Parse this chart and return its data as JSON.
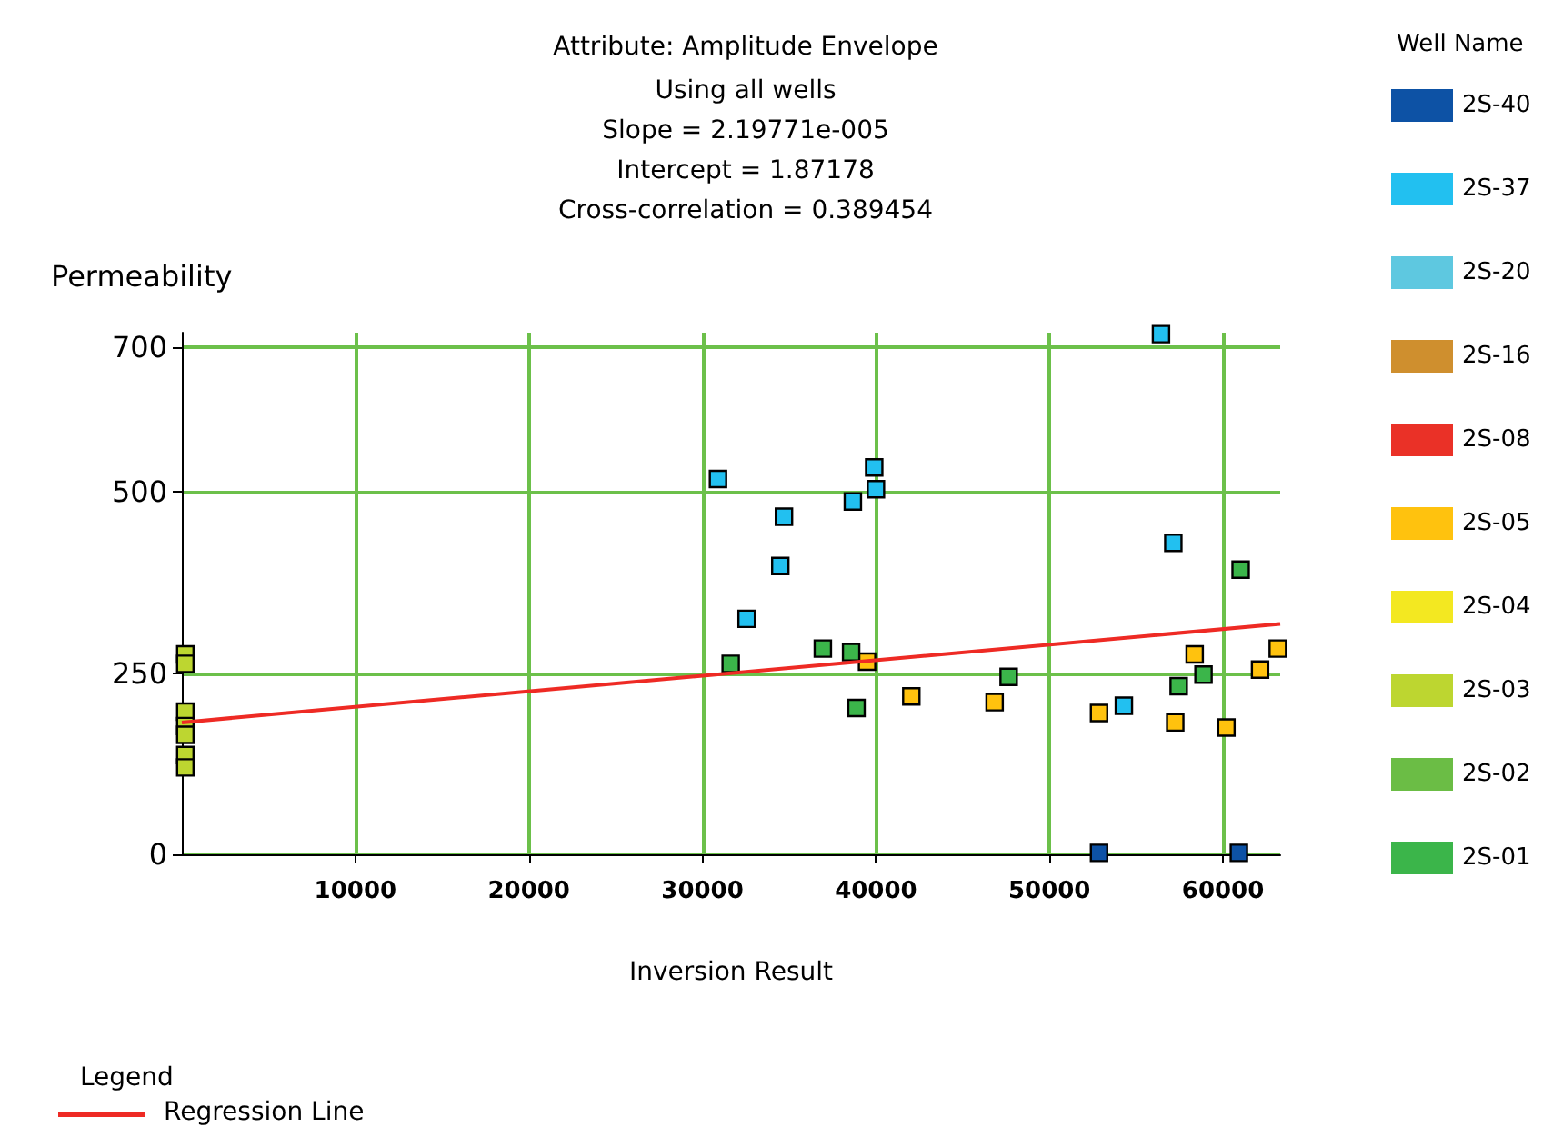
{
  "chart_data": {
    "type": "scatter",
    "title": "Attribute: Amplitude Envelope",
    "subtitle": "Using all wells",
    "annotations": [
      "Slope = 2.19771e-005",
      "Intercept = 1.87178",
      "Cross-correlation = 0.389454",
      "Legend"
    ],
    "xlabel": "Inversion Result",
    "ylabel": "Permeability",
    "legend_title": "Well Name",
    "legend": "right",
    "grid": true,
    "xlim": [
      0,
      63300
    ],
    "xticks": [
      10000,
      20000,
      30000,
      40000,
      50000,
      60000
    ],
    "ylim": [
      0,
      720
    ],
    "yticks": [
      0,
      250,
      500,
      700
    ],
    "series": [
      {
        "name": "2S-40",
        "color": "#0d52a5",
        "marker": "square",
        "x": [
          52860,
          60920
        ],
        "values": [
          2,
          2
        ]
      },
      {
        "name": "2S-37",
        "color": "#22c0f0",
        "marker": "square",
        "x": [
          30900,
          32550,
          34490,
          34700,
          38670,
          39900,
          40000,
          56430,
          57140,
          54290
        ],
        "values": [
          518,
          325,
          398,
          466,
          487,
          534,
          504,
          718,
          430,
          205
        ]
      },
      {
        "name": "2S-20",
        "color": "#5ec8e0"
      },
      {
        "name": "2S-16",
        "color": "#cf8f2e"
      },
      {
        "name": "2S-08",
        "color": "#ea3127"
      },
      {
        "name": "2S-05",
        "color": "#ffc20e",
        "marker": "square",
        "x": [
          39490,
          42040,
          46840,
          52860,
          57250,
          58370,
          60200,
          62140,
          63160
        ],
        "values": [
          266,
          218,
          210,
          195,
          182,
          276,
          175,
          255,
          284
        ]
      },
      {
        "name": "2S-04",
        "color": "#f3e821"
      },
      {
        "name": "2S-03",
        "color": "#bdd630",
        "marker": "square",
        "x": [
          200,
          200,
          200,
          200,
          200,
          200,
          200
        ],
        "values": [
          276,
          263,
          197,
          177,
          165,
          137,
          120
        ]
      },
      {
        "name": "2S-02",
        "color": "#6bbd45"
      },
      {
        "name": "2S-01",
        "color": "#3bb54a",
        "marker": "square",
        "x": [
          31630,
          36940,
          38570,
          38880,
          47650,
          57450,
          58880,
          61020
        ],
        "values": [
          263,
          284,
          279,
          202,
          245,
          232,
          248,
          393
        ]
      },
      {
        "name": "Regression Line",
        "type": "line",
        "color": "#ee2a24",
        "marker": "none",
        "x": [
          0,
          63300
        ],
        "values": [
          182,
          318
        ]
      }
    ]
  }
}
